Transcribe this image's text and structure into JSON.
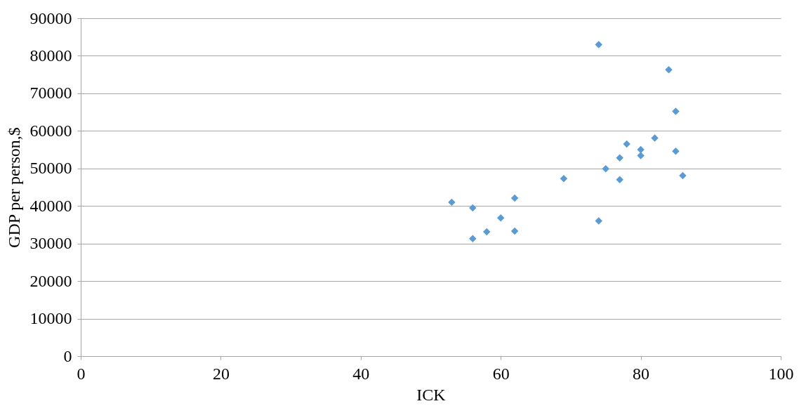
{
  "chart_data": {
    "type": "scatter",
    "xlabel": "ICK",
    "ylabel": "GDP per person,$",
    "x": [
      53,
      56,
      56,
      58,
      60,
      62,
      62,
      69,
      74,
      74,
      75,
      77,
      77,
      78,
      80,
      80,
      82,
      84,
      85,
      85,
      86
    ],
    "series": [
      {
        "color": "#5b9bd5",
        "values": [
          41000,
          39500,
          31300,
          33100,
          36800,
          42100,
          33300,
          47300,
          83000,
          36000,
          49900,
          52800,
          47000,
          56500,
          55000,
          53400,
          58100,
          76300,
          65200,
          54600,
          48100
        ]
      }
    ],
    "xlim": [
      0,
      100
    ],
    "xticks": [
      0,
      20,
      40,
      60,
      80,
      100
    ],
    "ylim": [
      0,
      90000
    ],
    "yticks": [
      0,
      10000,
      20000,
      30000,
      40000,
      50000,
      60000,
      70000,
      80000,
      90000
    ],
    "grid": "y",
    "marker": "diamond",
    "legend": false
  }
}
